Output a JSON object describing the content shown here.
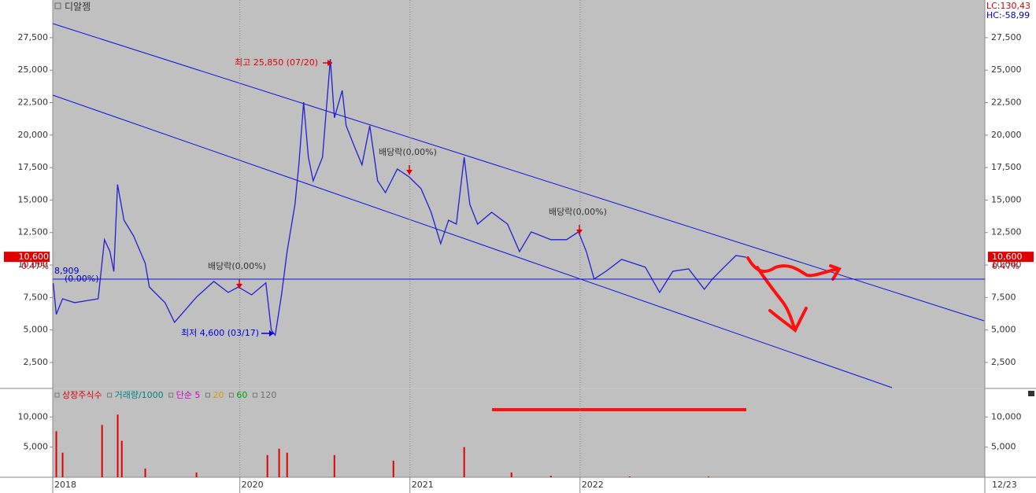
{
  "chart_data": [
    {
      "type": "line",
      "title": "디알젬",
      "info": [
        "LC:130,43",
        "HC:-58,99"
      ],
      "x": [
        2018.903,
        2018.921,
        2018.958,
        2019.028,
        2019.167,
        2019.204,
        2019.236,
        2019.259,
        2019.281,
        2019.319,
        2019.375,
        2019.444,
        2019.468,
        2019.56,
        2019.616,
        2019.676,
        2019.745,
        2019.847,
        2019.931,
        2019.991,
        2020.069,
        2020.153,
        2020.185,
        2020.208,
        2020.245,
        2020.278,
        2020.324,
        2020.347,
        2020.375,
        2020.403,
        2020.431,
        2020.486,
        2020.532,
        2020.556,
        2020.602,
        2020.625,
        2020.671,
        2020.718,
        2020.764,
        2020.81,
        2020.856,
        2020.926,
        2020.995,
        2021.065,
        2021.125,
        2021.181,
        2021.227,
        2021.273,
        2021.319,
        2021.352,
        2021.398,
        2021.481,
        2021.574,
        2021.644,
        2021.713,
        2021.829,
        2021.921,
        2021.991,
        2022.037,
        2022.083,
        2022.153,
        2022.245,
        2022.315,
        2022.384,
        2022.468,
        2022.546,
        2022.639,
        2022.731,
        2022.778,
        2022.847,
        2022.917,
        2022.977
      ],
      "series": [
        {
          "color": "#2020d0",
          "values": [
            8600,
            6200,
            7400,
            7100,
            7400,
            11950,
            11050,
            9500,
            16200,
            13450,
            12250,
            10130,
            8310,
            7100,
            5590,
            6500,
            7530,
            8740,
            7890,
            8310,
            7700,
            8620,
            5000,
            4600,
            7700,
            11040,
            14670,
            17700,
            22540,
            18300,
            16480,
            18300,
            25850,
            21330,
            23440,
            20720,
            19210,
            17700,
            20720,
            16480,
            15570,
            17390,
            16790,
            15880,
            14060,
            11640,
            13450,
            13150,
            18300,
            14670,
            13150,
            14060,
            13150,
            11040,
            12550,
            11950,
            11950,
            12550,
            11040,
            8920,
            9520,
            10430,
            10130,
            9830,
            7890,
            9520,
            9700,
            8130,
            8920,
            9830,
            10730,
            10600
          ]
        }
      ],
      "xlim": [
        2018.9,
        2024.38
      ],
      "xticks": [
        {
          "value": 2018.9,
          "label": "2018"
        },
        {
          "value": 2020.0,
          "label": "2020"
        },
        {
          "value": 2021.0,
          "label": "2021"
        },
        {
          "value": 2022.0,
          "label": "2022"
        }
      ],
      "date_label": "12/23",
      "ylim": [
        560,
        30400
      ],
      "yticks": [
        {
          "value": 2500,
          "label": "2,500"
        },
        {
          "value": 5000,
          "label": "5,000"
        },
        {
          "value": 7500,
          "label": "7,500"
        },
        {
          "value": 10000,
          "label": "10,000"
        },
        {
          "value": 12500,
          "label": "12,500"
        },
        {
          "value": 15000,
          "label": "15,000"
        },
        {
          "value": 17500,
          "label": "17,500"
        },
        {
          "value": 20000,
          "label": "20,000"
        },
        {
          "value": 22500,
          "label": "22,500"
        },
        {
          "value": 25000,
          "label": "25,000"
        },
        {
          "value": 27500,
          "label": "27,500"
        }
      ],
      "last_price": {
        "value": 10600,
        "label": "10,600"
      },
      "change": {
        "value": 0.47,
        "label": "0.47%"
      },
      "base_line": {
        "value": 8909,
        "label": "8,909"
      },
      "base_change": "(0.00%)",
      "annotations": [
        "최고 25,850 (07/20)",
        "최저 4,600 (03/17)",
        "배당락(0,00%)",
        "배당락(0,00%)",
        "배당락(0,00%)"
      ]
    },
    {
      "type": "bar",
      "legend": [
        {
          "name": "상장주식수",
          "color": "#e00000"
        },
        {
          "name": "거래량/1000",
          "color": "#008080"
        },
        {
          "name": "단순 5",
          "color": "#d000d0"
        },
        {
          "name": "20",
          "color": "#d0a000"
        },
        {
          "name": "60",
          "color": "#00a000"
        },
        {
          "name": "120",
          "color": "#707070"
        }
      ],
      "x": [
        2018.921,
        2018.958,
        2019.19,
        2019.282,
        2019.306,
        2019.444,
        2019.745,
        2020.162,
        2020.231,
        2020.278,
        2020.556,
        2020.903,
        2021.319,
        2021.597,
        2021.829,
        2022.292,
        2022.755
      ],
      "series": [
        {
          "color": "#e00000",
          "values": [
            7630,
            4080,
            8680,
            10390,
            6050,
            1450,
            790,
            3680,
            4740,
            4080,
            3680,
            2760,
            5000,
            790,
            260,
            130,
            130
          ]
        }
      ],
      "ylim": [
        0,
        14600
      ],
      "yticks": [
        {
          "value": 5000,
          "label": "5,000"
        },
        {
          "value": 10000,
          "label": "10,000"
        }
      ]
    }
  ]
}
